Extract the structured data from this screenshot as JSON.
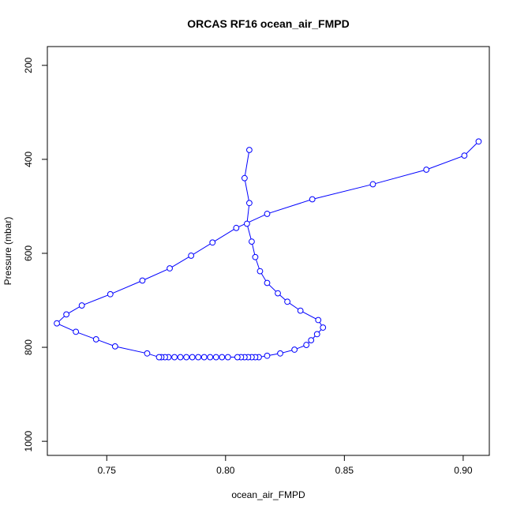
{
  "chart_data": {
    "type": "line",
    "title": "ORCAS RF16 ocean_air_FMPD",
    "xlabel": "ocean_air_FMPD",
    "ylabel": "Pressure (mbar)",
    "xlim": [
      0.725,
      0.911
    ],
    "ylim": [
      1030,
      160
    ],
    "y_reversed": true,
    "xticks": [
      0.75,
      0.8,
      0.85,
      0.9
    ],
    "xtick_labels": [
      "0.75",
      "0.80",
      "0.85",
      "0.90"
    ],
    "yticks": [
      200,
      400,
      600,
      800,
      1000
    ],
    "ytick_labels": [
      "200",
      "400",
      "600",
      "800",
      "1000"
    ],
    "grid": false,
    "legend": "none",
    "series_color": "#0000ff",
    "series": [
      {
        "marker": "open-circle",
        "line": true,
        "points": [
          [
            0.81,
            380
          ],
          [
            0.808,
            440
          ],
          [
            0.81,
            493
          ],
          [
            0.809,
            537
          ],
          [
            0.811,
            575
          ],
          [
            0.8125,
            608
          ],
          [
            0.8145,
            638
          ],
          [
            0.8175,
            663
          ],
          [
            0.822,
            685
          ],
          [
            0.826,
            703
          ],
          [
            0.8315,
            722
          ],
          [
            0.839,
            742
          ],
          [
            0.841,
            758
          ],
          [
            0.8385,
            772
          ],
          [
            0.836,
            785
          ],
          [
            0.834,
            795
          ],
          [
            0.829,
            805
          ],
          [
            0.823,
            813
          ],
          [
            0.8175,
            818
          ],
          [
            0.814,
            821
          ],
          [
            0.8125,
            821
          ],
          [
            0.811,
            821
          ],
          [
            0.8095,
            821
          ],
          [
            0.808,
            821
          ],
          [
            0.8065,
            821
          ],
          [
            0.805,
            821
          ],
          [
            0.801,
            821
          ],
          [
            0.7985,
            821
          ],
          [
            0.796,
            821
          ],
          [
            0.7935,
            821
          ],
          [
            0.791,
            821
          ],
          [
            0.7885,
            821
          ],
          [
            0.786,
            821
          ],
          [
            0.7835,
            821
          ],
          [
            0.781,
            821
          ],
          [
            0.7785,
            821
          ],
          [
            0.776,
            821
          ],
          [
            0.7745,
            821
          ],
          [
            0.773,
            821
          ],
          [
            0.772,
            821
          ],
          [
            0.767,
            813
          ],
          [
            0.7535,
            798
          ],
          [
            0.7455,
            783
          ],
          [
            0.737,
            767
          ],
          [
            0.729,
            749
          ],
          [
            0.733,
            730
          ],
          [
            0.7395,
            711
          ],
          [
            0.7515,
            687
          ],
          [
            0.765,
            658
          ],
          [
            0.7765,
            632
          ],
          [
            0.7855,
            605
          ],
          [
            0.7945,
            577
          ],
          [
            0.8045,
            546
          ],
          [
            0.8175,
            516
          ],
          [
            0.8365,
            485
          ],
          [
            0.862,
            453
          ],
          [
            0.8845,
            422
          ],
          [
            0.9005,
            392
          ],
          [
            0.9065,
            362
          ]
        ]
      }
    ]
  }
}
